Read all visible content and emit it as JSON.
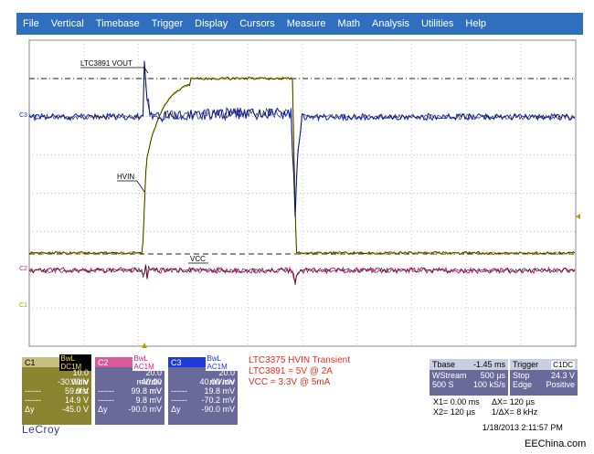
{
  "menu": [
    "File",
    "Vertical",
    "Timebase",
    "Trigger",
    "Display",
    "Cursors",
    "Measure",
    "Math",
    "Analysis",
    "Utilities",
    "Help"
  ],
  "waveform_labels": {
    "vout": "LTC3891 VOUT",
    "hvin": "HVIN",
    "vcc": "VCC",
    "c1_marker": "C1",
    "c2_marker": "C2",
    "c3_marker": "C3"
  },
  "channels": {
    "c1": {
      "name": "C1",
      "coupling": "BwL DC1M",
      "rows": [
        {
          "label": "",
          "value": "10.0 V/div"
        },
        {
          "label": "",
          "value": "-30.00 V ofst"
        },
        {
          "label": "------",
          "value": "59.9 V"
        },
        {
          "label": "------",
          "value": "14.9 V"
        },
        {
          "label": "Δy",
          "value": "-45.0 V"
        }
      ]
    },
    "c2": {
      "name": "C2",
      "coupling": "BwL AC1M",
      "rows": [
        {
          "label": "",
          "value": "20.0 mV/div"
        },
        {
          "label": "",
          "value": "-40.00 mV"
        },
        {
          "label": "------",
          "value": "99.8 mV"
        },
        {
          "label": "------",
          "value": "9.8 mV"
        },
        {
          "label": "Δy",
          "value": "-90.0 mV"
        }
      ]
    },
    "c3": {
      "name": "C3",
      "coupling": "BwL AC1M",
      "rows": [
        {
          "label": "",
          "value": "20.0 mV/div"
        },
        {
          "label": "",
          "value": "40.00 mV"
        },
        {
          "label": "------",
          "value": "19.8 mV"
        },
        {
          "label": "------",
          "value": "-70.2 mV"
        },
        {
          "label": "Δy",
          "value": "-90.0 mV"
        }
      ]
    }
  },
  "annotation": {
    "line1": "LTC3375 HVIN Transient",
    "line2": "LTC3891 = 5V @ 2A",
    "line3": "VCC = 3.3V @ 5mA"
  },
  "timebase": {
    "title": "Tbase",
    "offset": "-1.45 ms",
    "mode": "WStream",
    "per_div": "500 µs",
    "samples": "500 S",
    "rate": "100 kS/s"
  },
  "trigger": {
    "title": "Trigger",
    "source": "C1DC",
    "state": "Stop",
    "level": "24.3 V",
    "type": "Edge",
    "slope": "Positive"
  },
  "cursors": {
    "x1": "X1= 0.00 ms",
    "dx": "ΔX= 120 µs",
    "x2": "X2= 120 µs",
    "inv_dx": "1/ΔX= 8 kHz"
  },
  "brand": "LeCroy",
  "timestamp": "1/18/2013 2:11:57 PM",
  "watermark": "EEChina.com",
  "colors": {
    "c1": "#d4c100",
    "c2": "#d0207a",
    "c3": "#1a2fd0",
    "menubar": "#2f6fbd",
    "grid": "#b8b8b8"
  }
}
